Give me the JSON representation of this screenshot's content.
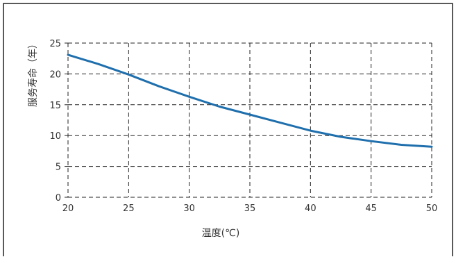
{
  "chart_data": {
    "type": "line",
    "title": "",
    "xlabel": "温度(℃)",
    "ylabel": "服务寿命（年）",
    "xlim": [
      20,
      50
    ],
    "ylim": [
      0,
      25
    ],
    "x_ticks": [
      "20",
      "25",
      "30",
      "35",
      "40",
      "45",
      "50"
    ],
    "y_ticks": [
      "0",
      "5",
      "10",
      "15",
      "20",
      "25"
    ],
    "grid": true,
    "grid_style": "dashed",
    "legend": false,
    "series": [
      {
        "color": "#1f6fad",
        "x": [
          20,
          22.5,
          25,
          27.5,
          30,
          32.5,
          35,
          37.5,
          40,
          42.5,
          45,
          47.5,
          50
        ],
        "y": [
          23.1,
          21.6,
          19.9,
          18.0,
          16.3,
          14.7,
          13.4,
          12.1,
          10.8,
          9.8,
          9.1,
          8.5,
          8.2
        ]
      }
    ]
  }
}
